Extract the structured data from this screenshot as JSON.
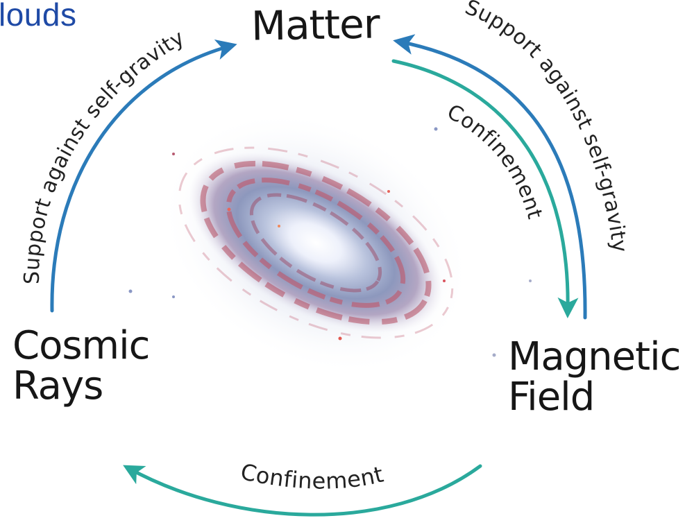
{
  "header_fragment": {
    "text": "louds",
    "color": "#1f4aa6"
  },
  "nodes": {
    "matter": {
      "label": "Matter"
    },
    "cosmic_rays": {
      "line1": "Cosmic",
      "line2": "Rays"
    },
    "magnetic_field": {
      "line1": "Magnetic",
      "line2": "Field"
    }
  },
  "edges": {
    "cr_to_matter": {
      "label": "Support against self-gravity",
      "color": "#2b7bb9"
    },
    "mf_to_matter": {
      "label": "Support against self-gravity",
      "color": "#2b7bb9"
    },
    "matter_to_mf": {
      "label": "Confinement",
      "color": "#2aa99c"
    },
    "mf_to_cr": {
      "label": "Confinement",
      "color": "#2aa99c"
    }
  },
  "center_image": {
    "description_icon": "spiral-galaxy-image"
  }
}
